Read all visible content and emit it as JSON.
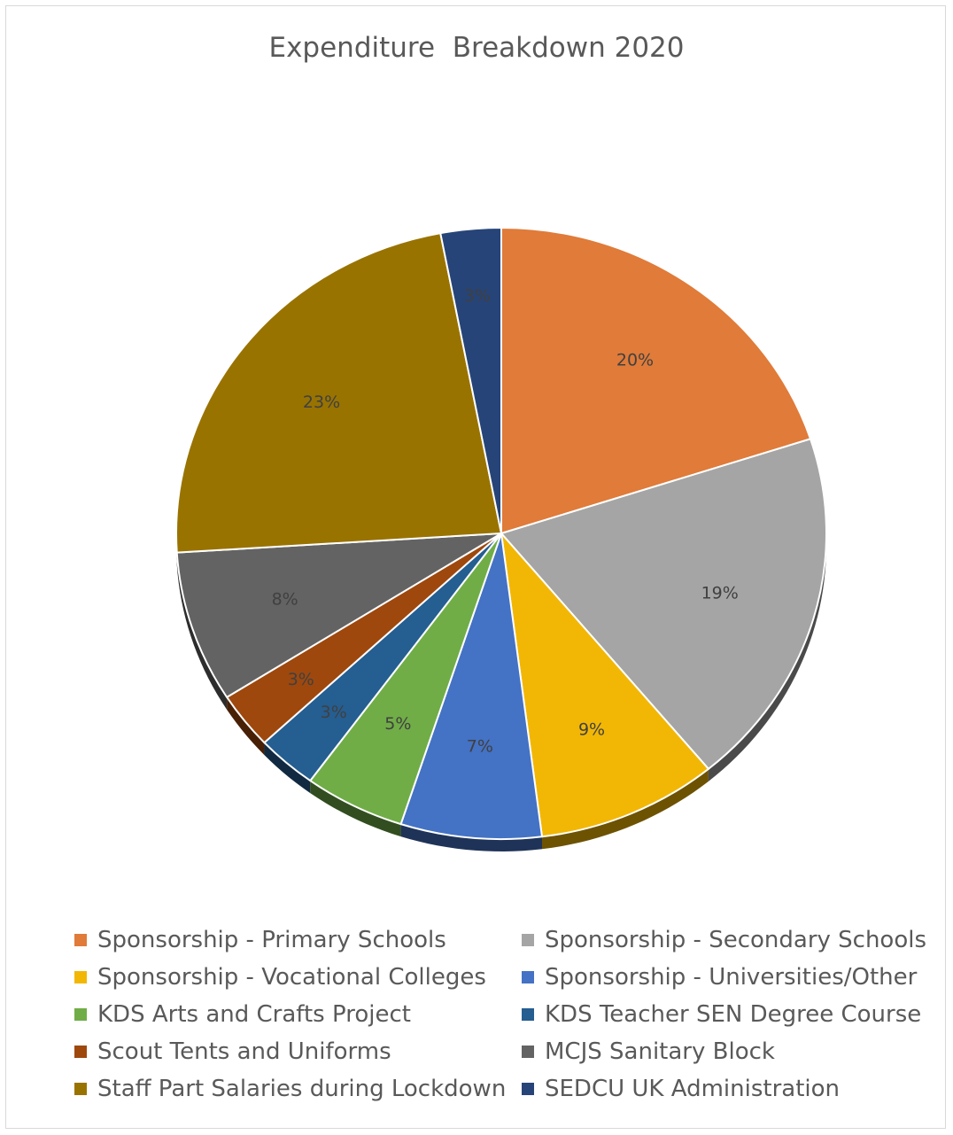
{
  "chart_data": {
    "type": "pie",
    "title": "Expenditure  Breakdown 2020",
    "categories": [
      "Sponsorship - Primary Schools",
      "Sponsorship - Secondary Schools",
      "Sponsorship - Vocational Colleges",
      "Sponsorship - Universities/Other",
      "KDS Arts and Crafts Project",
      "KDS Teacher SEN Degree Course",
      "Scout Tents and Uniforms",
      "MCJS Sanitary Block",
      "Staff Part Salaries during Lockdown",
      "SEDCU UK Administration"
    ],
    "values": [
      20,
      19,
      9,
      7,
      5,
      3,
      3,
      8,
      23,
      3
    ],
    "data_labels": [
      "20%",
      "19%",
      "9%",
      "7%",
      "5%",
      "3%",
      "3%",
      "8%",
      "23%",
      "3%"
    ],
    "colors": [
      "#E07B39",
      "#A5A5A5",
      "#F2B705",
      "#4472C4",
      "#70AD47",
      "#255E91",
      "#9E480E",
      "#636363",
      "#997300",
      "#264478"
    ],
    "legend_position": "bottom",
    "style": "3d-tilted"
  }
}
